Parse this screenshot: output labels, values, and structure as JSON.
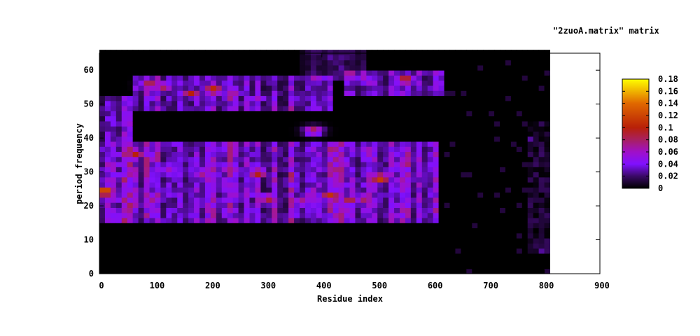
{
  "chart_data": {
    "type": "heatmap",
    "title": "\"2zuoA.matrix\" matrix",
    "xlabel": "Residue index",
    "ylabel": "period frequency",
    "xlim": [
      0,
      900
    ],
    "ylim": [
      0,
      65
    ],
    "xticks": [
      0,
      100,
      200,
      300,
      400,
      500,
      600,
      700,
      800,
      900
    ],
    "yticks": [
      0,
      10,
      20,
      30,
      40,
      50,
      60
    ],
    "data_extent_residues": 808,
    "colorbar": {
      "range": [
        0,
        0.18
      ],
      "ticks": [
        "0",
        "0.02",
        "0.04",
        "0.06",
        "0.08",
        "0.1",
        "0.12",
        "0.14",
        "0.16",
        "0.18"
      ],
      "tick_values": [
        0,
        0.02,
        0.04,
        0.06,
        0.08,
        0.1,
        0.12,
        0.14,
        0.16,
        0.18
      ],
      "palette": [
        {
          "v": 0.0,
          "c": "#000000"
        },
        {
          "v": 0.02,
          "c": "#3a0a66"
        },
        {
          "v": 0.04,
          "c": "#8010ff"
        },
        {
          "v": 0.06,
          "c": "#a010c8"
        },
        {
          "v": 0.08,
          "c": "#a82060"
        },
        {
          "v": 0.1,
          "c": "#b82008"
        },
        {
          "v": 0.14,
          "c": "#e06800"
        },
        {
          "v": 0.18,
          "c": "#ffff00"
        }
      ]
    },
    "bands": [
      {
        "residues": [
          0,
          610
        ],
        "period": [
          15,
          38
        ],
        "value": 0.04
      },
      {
        "residues": [
          60,
          420
        ],
        "period": [
          48,
          58
        ],
        "value": 0.035
      },
      {
        "residues": [
          0,
          60
        ],
        "period": [
          38,
          52
        ],
        "value": 0.03
      },
      {
        "residues": [
          440,
          620
        ],
        "period": [
          52,
          60
        ],
        "value": 0.035
      },
      {
        "residues": [
          360,
          480
        ],
        "period": [
          56,
          65
        ],
        "value": 0.015
      }
    ],
    "peaks": [
      {
        "residue": 5,
        "period": 23.5,
        "value": 0.15
      },
      {
        "residue": 60,
        "period": 34.5,
        "value": 0.1
      },
      {
        "residue": 90,
        "period": 20.5,
        "value": 0.08
      },
      {
        "residue": 85,
        "period": 55,
        "value": 0.1
      },
      {
        "residue": 110,
        "period": 54.5,
        "value": 0.09
      },
      {
        "residue": 160,
        "period": 52.5,
        "value": 0.1
      },
      {
        "residue": 200,
        "period": 53.5,
        "value": 0.12
      },
      {
        "residue": 235,
        "period": 53,
        "value": 0.08
      },
      {
        "residue": 120,
        "period": 30.5,
        "value": 0.07
      },
      {
        "residue": 180,
        "period": 29,
        "value": 0.08
      },
      {
        "residue": 225,
        "period": 30.5,
        "value": 0.07
      },
      {
        "residue": 280,
        "period": 29,
        "value": 0.11
      },
      {
        "residue": 300,
        "period": 21.5,
        "value": 0.1
      },
      {
        "residue": 360,
        "period": 20.5,
        "value": 0.08
      },
      {
        "residue": 380,
        "period": 41.5,
        "value": 0.09
      },
      {
        "residue": 410,
        "period": 22.5,
        "value": 0.11
      },
      {
        "residue": 445,
        "period": 21,
        "value": 0.09
      },
      {
        "residue": 472,
        "period": 21.5,
        "value": 0.09
      },
      {
        "residue": 500,
        "period": 27.5,
        "value": 0.13
      },
      {
        "residue": 545,
        "period": 56.5,
        "value": 0.11
      },
      {
        "residue": 280,
        "period": 51,
        "value": 0.06
      },
      {
        "residue": 375,
        "period": 23,
        "value": 0.07
      }
    ]
  }
}
